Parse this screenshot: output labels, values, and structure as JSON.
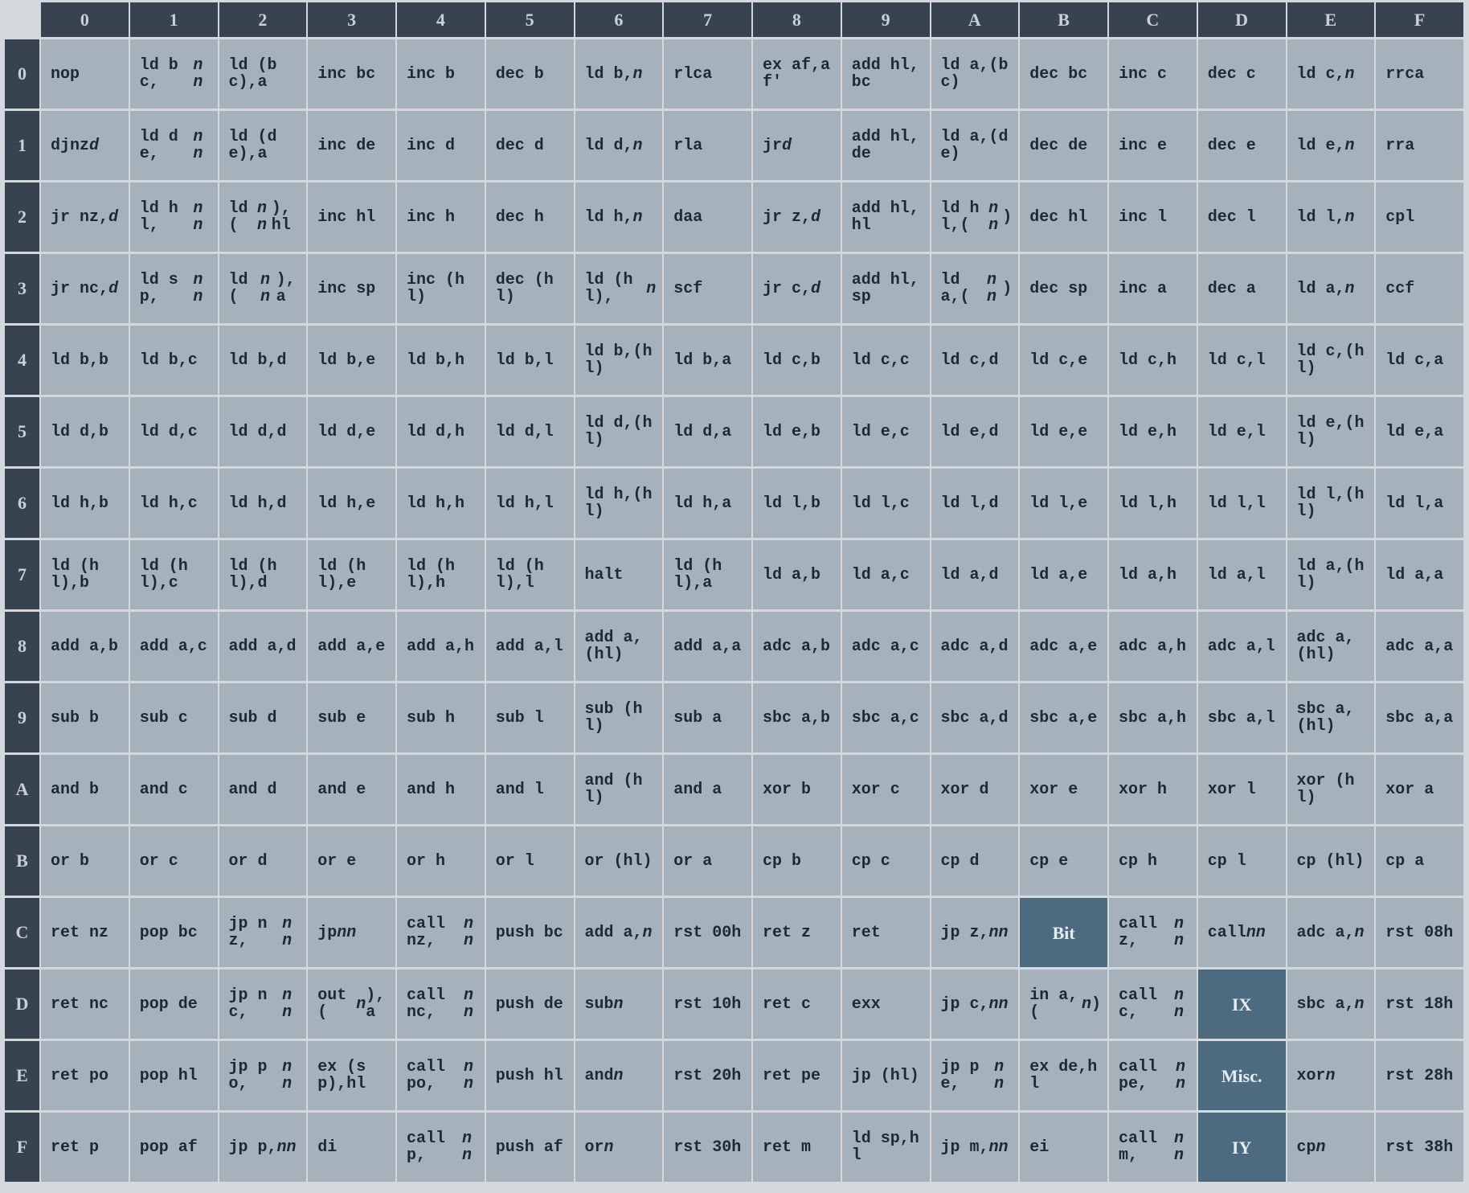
{
  "columns": [
    "0",
    "1",
    "2",
    "3",
    "4",
    "5",
    "6",
    "7",
    "8",
    "9",
    "A",
    "B",
    "C",
    "D",
    "E",
    "F"
  ],
  "rows": [
    "0",
    "1",
    "2",
    "3",
    "4",
    "5",
    "6",
    "7",
    "8",
    "9",
    "A",
    "B",
    "C",
    "D",
    "E",
    "F"
  ],
  "prefix_cells": {
    "C-B": "Bit",
    "D-D": "IX",
    "E-D": "Misc.",
    "F-D": "IY"
  },
  "colors": {
    "header": "#37444f",
    "cell": "#a5b2bc",
    "prefix": "#4d6b80"
  },
  "opcodes": [
    [
      "nop",
      "ld bc,*nn*",
      "ld (bc),a",
      "inc bc",
      "inc b",
      "dec b",
      "ld b,*n*",
      "rlca",
      "ex af,af'",
      "add hl,bc",
      "ld a,(bc)",
      "dec bc",
      "inc c",
      "dec c",
      "ld c,*n*",
      "rrca"
    ],
    [
      "djnz *d*",
      "ld de,*nn*",
      "ld (de),a",
      "inc de",
      "inc d",
      "dec d",
      "ld d,*n*",
      "rla",
      "jr *d*",
      "add hl,de",
      "ld a,(de)",
      "dec de",
      "inc e",
      "dec e",
      "ld e,*n*",
      "rra"
    ],
    [
      "jr nz,*d*",
      "ld hl,*nn*",
      "ld (*nn*),hl",
      "inc hl",
      "inc h",
      "dec h",
      "ld h,*n*",
      "daa",
      "jr z,*d*",
      "add hl,hl",
      "ld hl,(*nn*)",
      "dec hl",
      "inc l",
      "dec l",
      "ld l,*n*",
      "cpl"
    ],
    [
      "jr nc,*d*",
      "ld sp,*nn*",
      "ld (*nn*),a",
      "inc sp",
      "inc (hl)",
      "dec (hl)",
      "ld (hl),*n*",
      "scf",
      "jr c,*d*",
      "add hl,sp",
      "ld a,(*nn*)",
      "dec sp",
      "inc a",
      "dec a",
      "ld a,*n*",
      "ccf"
    ],
    [
      "ld b,b",
      "ld b,c",
      "ld b,d",
      "ld b,e",
      "ld b,h",
      "ld b,l",
      "ld b,(hl)",
      "ld b,a",
      "ld c,b",
      "ld c,c",
      "ld c,d",
      "ld c,e",
      "ld c,h",
      "ld c,l",
      "ld c,(hl)",
      "ld c,a"
    ],
    [
      "ld d,b",
      "ld d,c",
      "ld d,d",
      "ld d,e",
      "ld d,h",
      "ld d,l",
      "ld d,(hl)",
      "ld d,a",
      "ld e,b",
      "ld e,c",
      "ld e,d",
      "ld e,e",
      "ld e,h",
      "ld e,l",
      "ld e,(hl)",
      "ld e,a"
    ],
    [
      "ld h,b",
      "ld h,c",
      "ld h,d",
      "ld h,e",
      "ld h,h",
      "ld h,l",
      "ld h,(hl)",
      "ld h,a",
      "ld l,b",
      "ld l,c",
      "ld l,d",
      "ld l,e",
      "ld l,h",
      "ld l,l",
      "ld l,(hl)",
      "ld l,a"
    ],
    [
      "ld (hl),b",
      "ld (hl),c",
      "ld (hl),d",
      "ld (hl),e",
      "ld (hl),h",
      "ld (hl),l",
      "halt",
      "ld (hl),a",
      "ld a,b",
      "ld a,c",
      "ld a,d",
      "ld a,e",
      "ld a,h",
      "ld a,l",
      "ld a,(hl)",
      "ld a,a"
    ],
    [
      "add a,b",
      "add a,c",
      "add a,d",
      "add a,e",
      "add a,h",
      "add a,l",
      "add a,(hl)",
      "add a,a",
      "adc a,b",
      "adc a,c",
      "adc a,d",
      "adc a,e",
      "adc a,h",
      "adc a,l",
      "adc a,(hl)",
      "adc a,a"
    ],
    [
      "sub b",
      "sub c",
      "sub d",
      "sub e",
      "sub h",
      "sub l",
      "sub (hl)",
      "sub a",
      "sbc a,b",
      "sbc a,c",
      "sbc a,d",
      "sbc a,e",
      "sbc a,h",
      "sbc a,l",
      "sbc a,(hl)",
      "sbc a,a"
    ],
    [
      "and b",
      "and c",
      "and d",
      "and e",
      "and h",
      "and l",
      "and (hl)",
      "and a",
      "xor b",
      "xor c",
      "xor d",
      "xor e",
      "xor h",
      "xor l",
      "xor (hl)",
      "xor a"
    ],
    [
      "or b",
      "or c",
      "or d",
      "or e",
      "or h",
      "or l",
      "or (hl)",
      "or a",
      "cp b",
      "cp c",
      "cp d",
      "cp e",
      "cp h",
      "cp l",
      "cp (hl)",
      "cp a"
    ],
    [
      "ret nz",
      "pop bc",
      "jp nz,*nn*",
      "jp *nn*",
      "call nz,*nn*",
      "push bc",
      "add a,*n*",
      "rst 00h",
      "ret z",
      "ret",
      "jp z,*nn*",
      "",
      "call z,*nn*",
      "call *nn*",
      "adc a,*n*",
      "rst 08h"
    ],
    [
      "ret nc",
      "pop de",
      "jp nc,*nn*",
      "out (*n*),a",
      "call nc,*nn*",
      "push de",
      "sub *n*",
      "rst 10h",
      "ret c",
      "exx",
      "jp c,*nn*",
      "in a,(*n*)",
      "call c,*nn*",
      "",
      "sbc a,*n*",
      "rst 18h"
    ],
    [
      "ret po",
      "pop hl",
      "jp po,*nn*",
      "ex (sp),hl",
      "call po,*nn*",
      "push hl",
      "and *n*",
      "rst 20h",
      "ret pe",
      "jp (hl)",
      "jp pe,*nn*",
      "ex de,hl",
      "call pe,*nn*",
      "",
      "xor *n*",
      "rst 28h"
    ],
    [
      "ret p",
      "pop af",
      "jp p,*nn*",
      "di",
      "call p,*nn*",
      "push af",
      "or *n*",
      "rst 30h",
      "ret m",
      "ld sp,hl",
      "jp m,*nn*",
      "ei",
      "call m,*nn*",
      "",
      "cp *n*",
      "rst 38h"
    ]
  ]
}
